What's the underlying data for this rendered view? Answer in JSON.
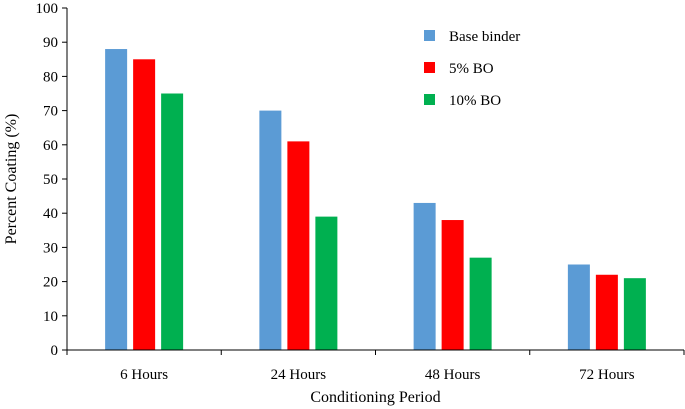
{
  "chart_data": {
    "type": "bar",
    "title": "",
    "xlabel": "Conditioning Period",
    "ylabel": "Percent Coating (%)",
    "ylim": [
      0,
      100
    ],
    "yticks": [
      0,
      10,
      20,
      30,
      40,
      50,
      60,
      70,
      80,
      90,
      100
    ],
    "categories": [
      "6 Hours",
      "24 Hours",
      "48 Hours",
      "72 Hours"
    ],
    "series": [
      {
        "name": "Base binder",
        "color": "#5B9BD5",
        "values": [
          88,
          70,
          43,
          25
        ]
      },
      {
        "name": "5% BO",
        "color": "#FF0000",
        "values": [
          85,
          61,
          38,
          22
        ]
      },
      {
        "name": "10% BO",
        "color": "#00B050",
        "values": [
          75,
          39,
          27,
          21
        ]
      }
    ],
    "legend_position": "top-right",
    "grid": false
  }
}
